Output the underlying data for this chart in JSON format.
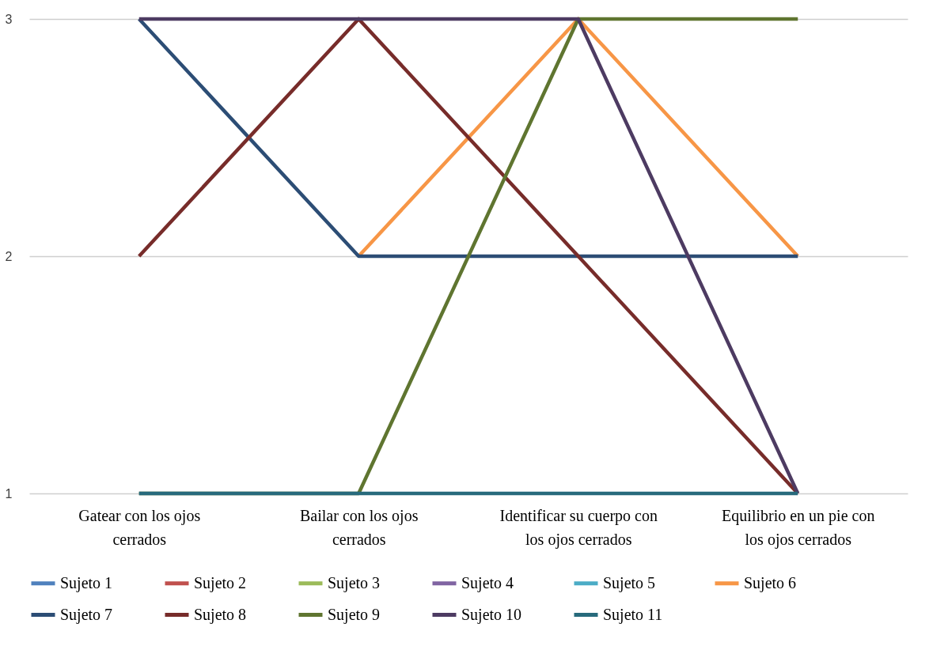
{
  "chart_data": {
    "type": "line",
    "categories": [
      "Gatear con los ojos cerrados",
      "Bailar con los ojos cerrados",
      "Identificar su cuerpo con los ojos cerrados",
      "Equilibrio en un pie con los ojos cerrados"
    ],
    "series": [
      {
        "name": "Sujeto 1",
        "color": "#4f81bd",
        "values": [
          null,
          null,
          null,
          null
        ]
      },
      {
        "name": "Sujeto 2",
        "color": "#c0504d",
        "values": [
          null,
          null,
          null,
          null
        ]
      },
      {
        "name": "Sujeto 3",
        "color": "#9bbb59",
        "values": [
          null,
          null,
          null,
          null
        ]
      },
      {
        "name": "Sujeto 4",
        "color": "#8064a2",
        "values": [
          null,
          null,
          null,
          null
        ]
      },
      {
        "name": "Sujeto 5",
        "color": "#4bacc6",
        "values": [
          null,
          null,
          null,
          null
        ]
      },
      {
        "name": "Sujeto 6",
        "color": "#f79646",
        "values": [
          null,
          2,
          3,
          2
        ]
      },
      {
        "name": "Sujeto 7",
        "color": "#2c4d75",
        "values": [
          3,
          2,
          2,
          2
        ]
      },
      {
        "name": "Sujeto 8",
        "color": "#772c2a",
        "values": [
          2,
          3,
          2,
          1
        ]
      },
      {
        "name": "Sujeto 9",
        "color": "#5f7530",
        "values": [
          1,
          1,
          3,
          3
        ]
      },
      {
        "name": "Sujeto 10",
        "color": "#4d3b62",
        "values": [
          3,
          3,
          3,
          1
        ]
      },
      {
        "name": "Sujeto 11",
        "color": "#276a7c",
        "values": [
          1,
          1,
          1,
          1
        ]
      }
    ],
    "ylim": [
      1,
      3
    ],
    "yticks": [
      1,
      2,
      3
    ],
    "grid": "y",
    "legend": "bottom",
    "marker": "none",
    "line_style": "solid"
  }
}
